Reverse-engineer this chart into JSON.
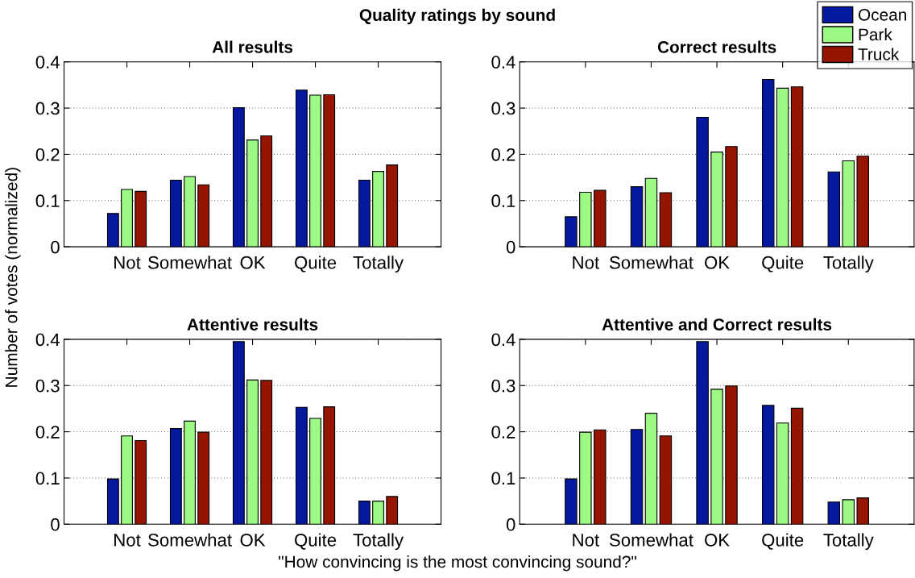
{
  "chart_data": [
    {
      "type": "bar",
      "title": "All results",
      "ylabel": "Number of votes (normalized)",
      "annotations": [
        "Quality ratings by sound"
      ],
      "categories": [
        "Not",
        "Somewhat",
        "OK",
        "Quite",
        "Totally"
      ],
      "ylim": [
        0,
        0.4
      ],
      "yticks": [
        0,
        0.1,
        0.2,
        0.3,
        0.4
      ],
      "grid": "y",
      "series": [
        {
          "color": "#0519a0",
          "values": [
            0.072,
            0.144,
            0.301,
            0.339,
            0.144
          ]
        },
        {
          "color": "#9cfa84",
          "values": [
            0.124,
            0.152,
            0.231,
            0.328,
            0.163
          ]
        },
        {
          "color": "#961500",
          "values": [
            0.12,
            0.134,
            0.24,
            0.329,
            0.177
          ]
        }
      ]
    },
    {
      "type": "bar",
      "title": "Correct results",
      "categories": [
        "Not",
        "Somewhat",
        "OK",
        "Quite",
        "Totally"
      ],
      "ylim": [
        0,
        0.4
      ],
      "yticks": [
        0,
        0.1,
        0.2,
        0.3,
        0.4
      ],
      "grid": "y",
      "legend": "top right",
      "series": [
        {
          "name": "Ocean",
          "color": "#0519a0",
          "values": [
            0.065,
            0.13,
            0.28,
            0.362,
            0.162
          ]
        },
        {
          "name": "Park",
          "color": "#9cfa84",
          "values": [
            0.118,
            0.148,
            0.205,
            0.343,
            0.186
          ]
        },
        {
          "name": "Truck",
          "color": "#961500",
          "values": [
            0.122,
            0.117,
            0.217,
            0.346,
            0.196
          ]
        }
      ]
    },
    {
      "type": "bar",
      "title": "Attentive results",
      "xlabel": "\"How convincing is the most convincing sound?\"",
      "categories": [
        "Not",
        "Somewhat",
        "OK",
        "Quite",
        "Totally"
      ],
      "ylim": [
        0,
        0.4
      ],
      "yticks": [
        0,
        0.1,
        0.2,
        0.3,
        0.4
      ],
      "grid": "y",
      "series": [
        {
          "color": "#0519a0",
          "values": [
            0.098,
            0.207,
            0.395,
            0.253,
            0.05
          ]
        },
        {
          "color": "#9cfa84",
          "values": [
            0.191,
            0.223,
            0.312,
            0.229,
            0.05
          ]
        },
        {
          "color": "#961500",
          "values": [
            0.181,
            0.199,
            0.311,
            0.254,
            0.06
          ]
        }
      ]
    },
    {
      "type": "bar",
      "title": "Attentive and Correct results",
      "categories": [
        "Not",
        "Somewhat",
        "OK",
        "Quite",
        "Totally"
      ],
      "ylim": [
        0,
        0.4
      ],
      "yticks": [
        0,
        0.1,
        0.2,
        0.3,
        0.4
      ],
      "grid": "y",
      "series": [
        {
          "color": "#0519a0",
          "values": [
            0.098,
            0.205,
            0.395,
            0.257,
            0.048
          ]
        },
        {
          "color": "#9cfa84",
          "values": [
            0.199,
            0.24,
            0.292,
            0.219,
            0.053
          ]
        },
        {
          "color": "#961500",
          "values": [
            0.204,
            0.191,
            0.299,
            0.251,
            0.057
          ]
        }
      ]
    }
  ]
}
